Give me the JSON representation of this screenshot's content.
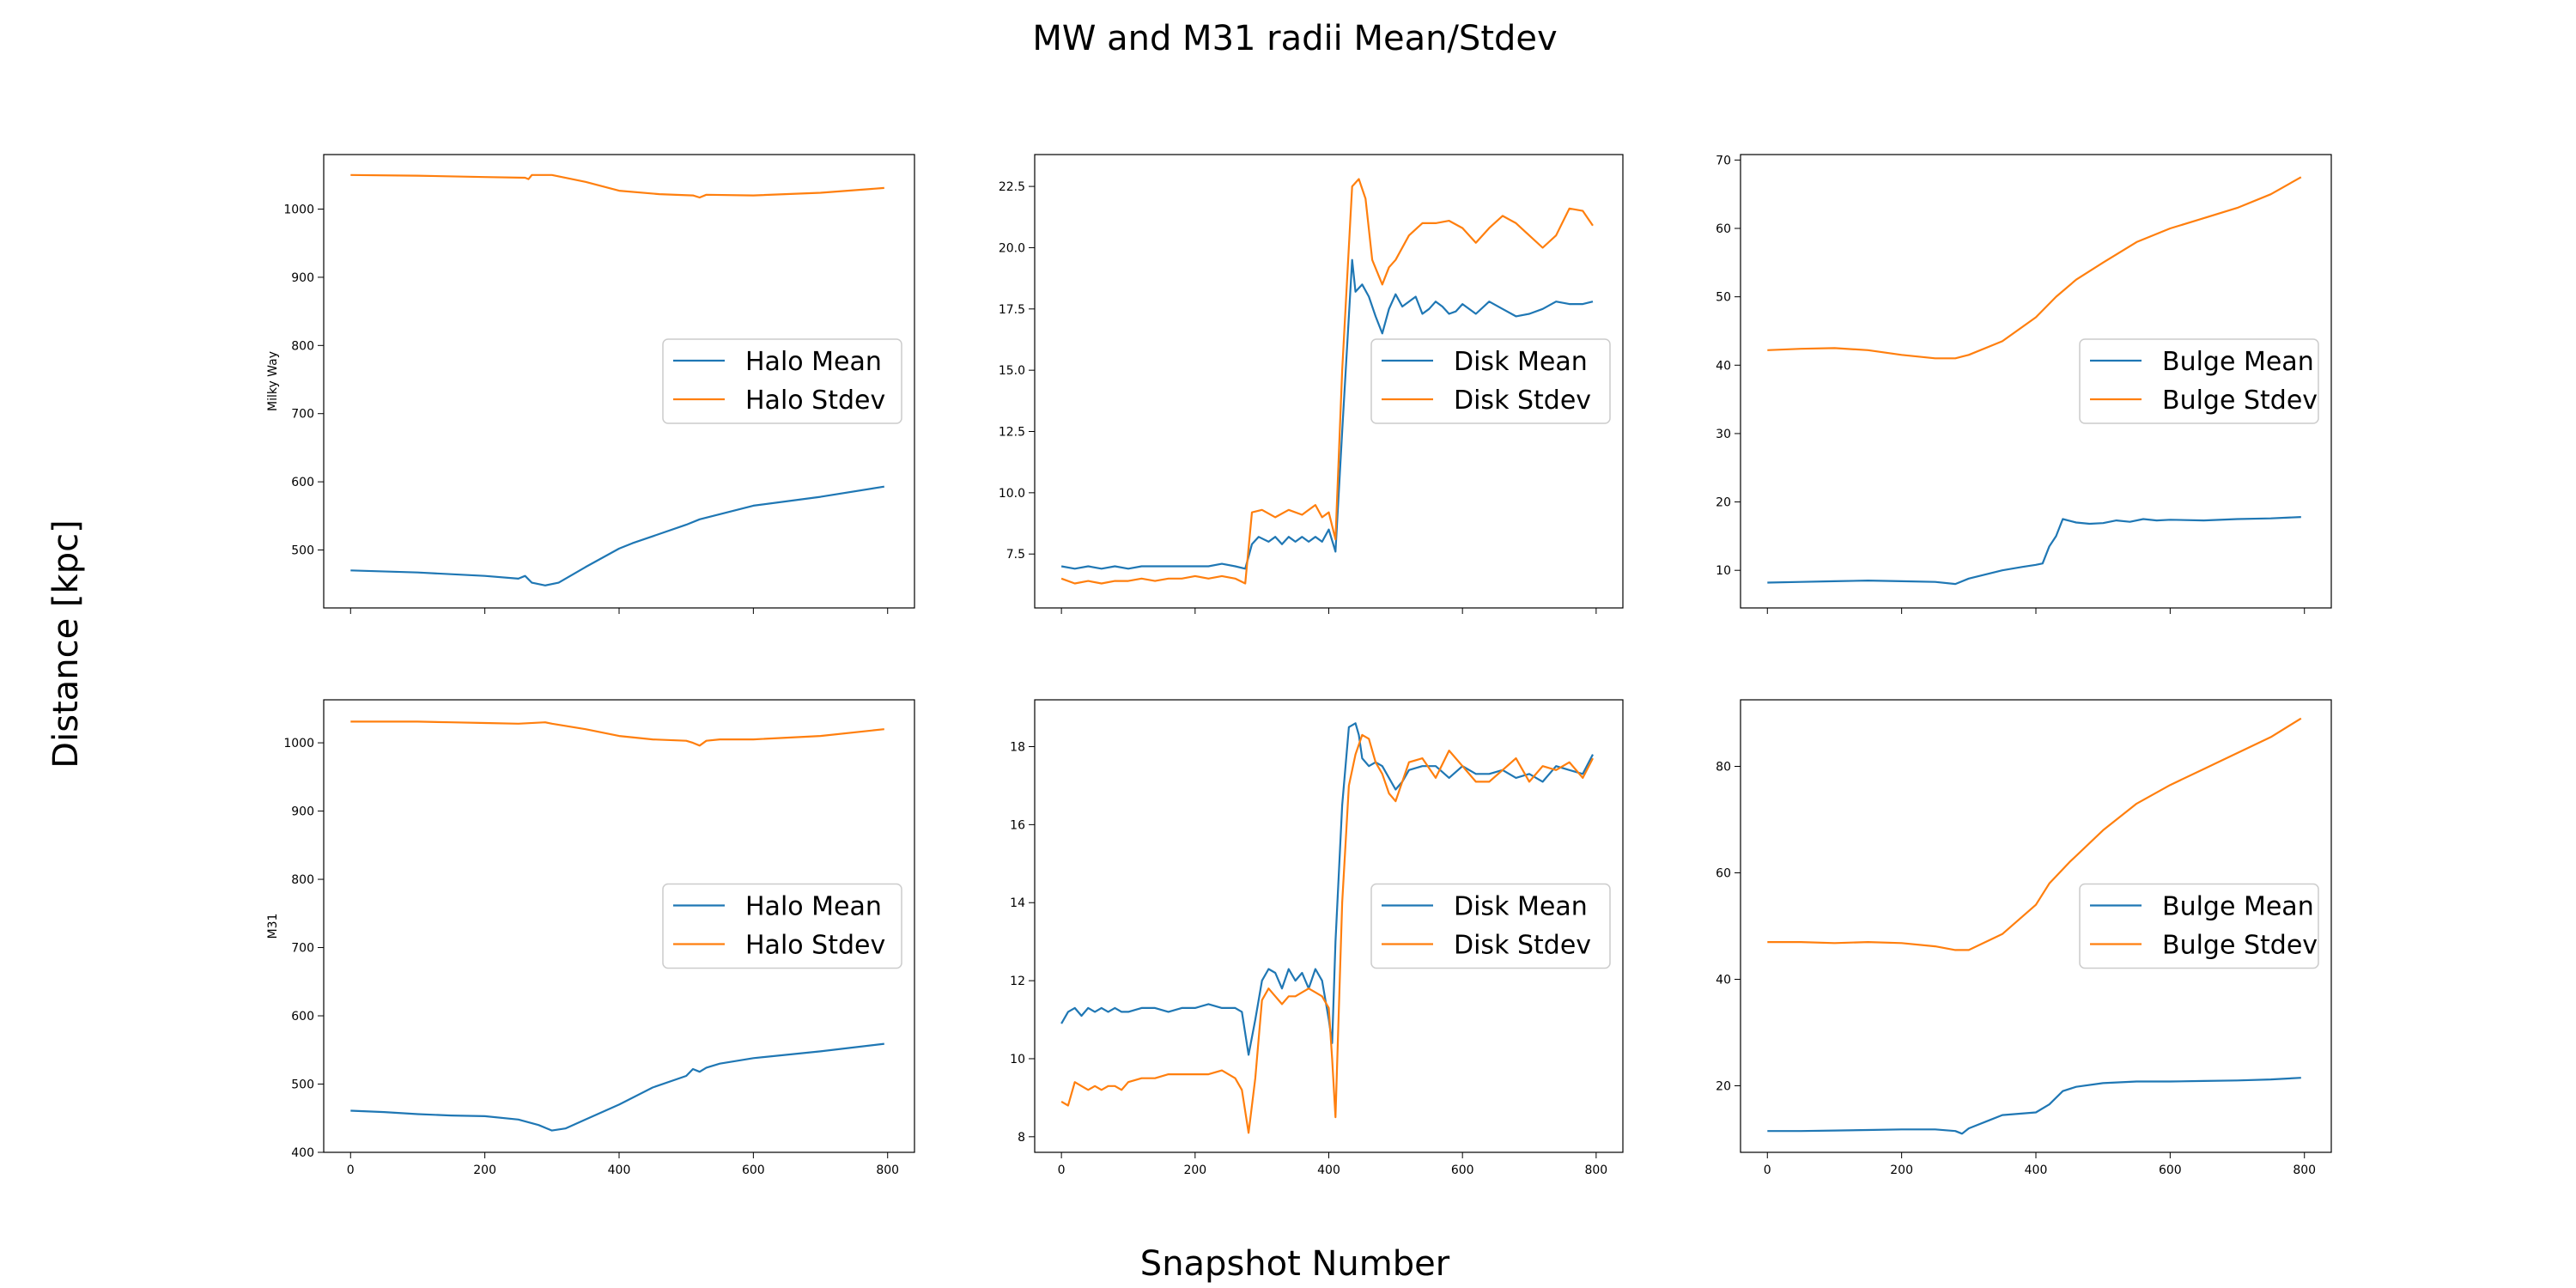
{
  "figure": {
    "title": "MW and M31 radii Mean/Stdev",
    "xlabel": "Snapshot Number",
    "ylabel": "Distance [kpc]"
  },
  "colors": {
    "mean": "#1f77b4",
    "stdev": "#ff7f0e"
  },
  "chart_data": [
    {
      "type": "line",
      "row": 0,
      "col": 0,
      "ylabel": "Milky Way",
      "xlim": [
        -40,
        840
      ],
      "ylim": [
        415,
        1080
      ],
      "xticks": [
        0,
        200,
        400,
        600,
        800
      ],
      "xticklabels_visible": false,
      "yticks": [
        500,
        600,
        700,
        800,
        900,
        1000
      ],
      "legend": "center-right",
      "series": [
        {
          "name": "Halo Mean",
          "color": "#1f77b4",
          "x": [
            0,
            100,
            200,
            250,
            260,
            270,
            290,
            310,
            350,
            400,
            420,
            500,
            520,
            600,
            700,
            795
          ],
          "y": [
            470,
            467,
            462,
            458,
            462,
            452,
            448,
            452,
            475,
            502,
            510,
            537,
            545,
            565,
            578,
            593
          ]
        },
        {
          "name": "Halo Stdev",
          "color": "#ff7f0e",
          "x": [
            0,
            100,
            200,
            260,
            265,
            270,
            300,
            350,
            400,
            460,
            510,
            520,
            530,
            600,
            700,
            795
          ],
          "y": [
            1050,
            1049,
            1047,
            1046,
            1044,
            1050,
            1050,
            1040,
            1027,
            1022,
            1020,
            1017,
            1021,
            1020,
            1024,
            1031
          ]
        }
      ]
    },
    {
      "type": "line",
      "row": 0,
      "col": 1,
      "ylabel": "",
      "xlim": [
        -40,
        840
      ],
      "ylim": [
        5.3,
        23.8
      ],
      "xticks": [
        0,
        200,
        400,
        600,
        800
      ],
      "xticklabels_visible": false,
      "yticks": [
        7.5,
        10.0,
        12.5,
        15.0,
        17.5,
        20.0,
        22.5
      ],
      "yticklabels": [
        "7.5",
        "10.0",
        "12.5",
        "15.0",
        "17.5",
        "20.0",
        "22.5"
      ],
      "legend": "center-right",
      "series": [
        {
          "name": "Disk Mean",
          "color": "#1f77b4",
          "x": [
            0,
            20,
            40,
            60,
            80,
            100,
            120,
            140,
            160,
            180,
            200,
            220,
            240,
            260,
            275,
            285,
            295,
            310,
            320,
            330,
            340,
            350,
            360,
            370,
            380,
            390,
            400,
            410,
            420,
            435,
            440,
            450,
            460,
            470,
            480,
            490,
            500,
            510,
            520,
            530,
            540,
            550,
            560,
            570,
            580,
            590,
            600,
            620,
            640,
            660,
            680,
            700,
            720,
            740,
            760,
            780,
            795
          ],
          "y": [
            7.0,
            6.9,
            7.0,
            6.9,
            7.0,
            6.9,
            7.0,
            7.0,
            7.0,
            7.0,
            7.0,
            7.0,
            7.1,
            7.0,
            6.9,
            7.9,
            8.2,
            8.0,
            8.2,
            7.9,
            8.2,
            8.0,
            8.2,
            8.0,
            8.2,
            8.0,
            8.5,
            7.6,
            12.5,
            19.5,
            18.2,
            18.5,
            18.0,
            17.2,
            16.5,
            17.5,
            18.1,
            17.6,
            17.8,
            18.0,
            17.3,
            17.5,
            17.8,
            17.6,
            17.3,
            17.4,
            17.7,
            17.3,
            17.8,
            17.5,
            17.2,
            17.3,
            17.5,
            17.8,
            17.7,
            17.7,
            17.8
          ]
        },
        {
          "name": "Disk Stdev",
          "color": "#ff7f0e",
          "x": [
            0,
            20,
            40,
            60,
            80,
            100,
            120,
            140,
            160,
            180,
            200,
            220,
            240,
            260,
            275,
            285,
            300,
            320,
            340,
            360,
            380,
            390,
            400,
            410,
            420,
            435,
            445,
            455,
            465,
            480,
            490,
            500,
            520,
            540,
            560,
            580,
            600,
            620,
            640,
            660,
            680,
            700,
            720,
            740,
            760,
            780,
            795
          ],
          "y": [
            6.5,
            6.3,
            6.4,
            6.3,
            6.4,
            6.4,
            6.5,
            6.4,
            6.5,
            6.5,
            6.6,
            6.5,
            6.6,
            6.5,
            6.3,
            9.2,
            9.3,
            9.0,
            9.3,
            9.1,
            9.5,
            9.0,
            9.2,
            8.1,
            15.0,
            22.5,
            22.8,
            22.0,
            19.5,
            18.5,
            19.2,
            19.5,
            20.5,
            21.0,
            21.0,
            21.1,
            20.8,
            20.2,
            20.8,
            21.3,
            21.0,
            20.5,
            20.0,
            20.5,
            21.6,
            21.5,
            20.9
          ]
        }
      ]
    },
    {
      "type": "line",
      "row": 0,
      "col": 2,
      "ylabel": "",
      "xlim": [
        -40,
        840
      ],
      "ylim": [
        4.5,
        70.8
      ],
      "xticks": [
        0,
        200,
        400,
        600,
        800
      ],
      "xticklabels_visible": false,
      "yticks": [
        10,
        20,
        30,
        40,
        50,
        60,
        70
      ],
      "legend": "center-right",
      "series": [
        {
          "name": "Bulge Mean",
          "color": "#1f77b4",
          "x": [
            0,
            50,
            100,
            150,
            200,
            250,
            280,
            300,
            350,
            380,
            400,
            410,
            420,
            430,
            440,
            460,
            480,
            500,
            520,
            540,
            560,
            580,
            600,
            650,
            700,
            750,
            795
          ],
          "y": [
            8.2,
            8.3,
            8.4,
            8.5,
            8.4,
            8.3,
            8.0,
            8.8,
            10.0,
            10.5,
            10.8,
            11.0,
            13.5,
            15.0,
            17.5,
            17.0,
            16.8,
            16.9,
            17.3,
            17.1,
            17.5,
            17.3,
            17.4,
            17.3,
            17.5,
            17.6,
            17.8
          ]
        },
        {
          "name": "Bulge Stdev",
          "color": "#ff7f0e",
          "x": [
            0,
            50,
            100,
            150,
            200,
            250,
            280,
            300,
            350,
            400,
            430,
            460,
            500,
            550,
            600,
            650,
            700,
            750,
            795
          ],
          "y": [
            42.2,
            42.4,
            42.5,
            42.2,
            41.5,
            41.0,
            41.0,
            41.5,
            43.5,
            47.0,
            50.0,
            52.5,
            55.0,
            58.0,
            60.0,
            61.5,
            63.0,
            65.0,
            67.5
          ]
        }
      ]
    },
    {
      "type": "line",
      "row": 1,
      "col": 0,
      "ylabel": "M31",
      "xlim": [
        -40,
        840
      ],
      "ylim": [
        400,
        1063
      ],
      "xticks": [
        0,
        200,
        400,
        600,
        800
      ],
      "xticklabels_visible": true,
      "yticks": [
        400,
        500,
        600,
        700,
        800,
        900,
        1000
      ],
      "legend": "center-right",
      "series": [
        {
          "name": "Halo Mean",
          "color": "#1f77b4",
          "x": [
            0,
            50,
            100,
            150,
            200,
            250,
            280,
            300,
            320,
            350,
            400,
            450,
            500,
            510,
            520,
            530,
            550,
            600,
            700,
            795
          ],
          "y": [
            461,
            459,
            456,
            454,
            453,
            448,
            440,
            432,
            435,
            448,
            470,
            495,
            512,
            522,
            518,
            524,
            530,
            538,
            548,
            559
          ]
        },
        {
          "name": "Halo Stdev",
          "color": "#ff7f0e",
          "x": [
            0,
            50,
            100,
            150,
            200,
            250,
            290,
            300,
            350,
            400,
            450,
            500,
            510,
            520,
            530,
            550,
            600,
            700,
            795
          ],
          "y": [
            1031,
            1031,
            1031,
            1030,
            1029,
            1028,
            1030,
            1028,
            1020,
            1010,
            1005,
            1003,
            1000,
            996,
            1003,
            1005,
            1005,
            1010,
            1020
          ]
        }
      ]
    },
    {
      "type": "line",
      "row": 1,
      "col": 1,
      "ylabel": "",
      "xlim": [
        -40,
        840
      ],
      "ylim": [
        7.6,
        19.2
      ],
      "xticks": [
        0,
        200,
        400,
        600,
        800
      ],
      "xticklabels_visible": true,
      "yticks": [
        8,
        10,
        12,
        14,
        16,
        18
      ],
      "legend": "center-right",
      "series": [
        {
          "name": "Disk Mean",
          "color": "#1f77b4",
          "x": [
            0,
            10,
            20,
            30,
            40,
            50,
            60,
            70,
            80,
            90,
            100,
            120,
            140,
            160,
            180,
            200,
            220,
            240,
            260,
            270,
            280,
            290,
            300,
            310,
            320,
            330,
            340,
            350,
            360,
            370,
            380,
            390,
            400,
            405,
            410,
            420,
            430,
            440,
            445,
            450,
            460,
            470,
            480,
            490,
            500,
            510,
            520,
            540,
            560,
            580,
            600,
            620,
            640,
            660,
            680,
            700,
            720,
            740,
            760,
            780,
            795
          ],
          "y": [
            10.9,
            11.2,
            11.3,
            11.1,
            11.3,
            11.2,
            11.3,
            11.2,
            11.3,
            11.2,
            11.2,
            11.3,
            11.3,
            11.2,
            11.3,
            11.3,
            11.4,
            11.3,
            11.3,
            11.2,
            10.1,
            11.0,
            12.0,
            12.3,
            12.2,
            11.8,
            12.3,
            12.0,
            12.2,
            11.8,
            12.3,
            12.0,
            11.0,
            10.4,
            13.0,
            16.5,
            18.5,
            18.6,
            18.3,
            17.7,
            17.5,
            17.6,
            17.5,
            17.2,
            16.9,
            17.1,
            17.4,
            17.5,
            17.5,
            17.2,
            17.5,
            17.3,
            17.3,
            17.4,
            17.2,
            17.3,
            17.1,
            17.5,
            17.4,
            17.3,
            17.8
          ]
        },
        {
          "name": "Disk Stdev",
          "color": "#ff7f0e",
          "x": [
            0,
            10,
            20,
            30,
            40,
            50,
            60,
            70,
            80,
            90,
            100,
            120,
            140,
            160,
            180,
            200,
            220,
            240,
            260,
            270,
            280,
            290,
            300,
            310,
            320,
            330,
            340,
            350,
            360,
            370,
            380,
            390,
            400,
            405,
            410,
            420,
            430,
            440,
            450,
            460,
            470,
            480,
            490,
            500,
            510,
            520,
            540,
            560,
            580,
            600,
            620,
            640,
            660,
            680,
            700,
            720,
            740,
            760,
            780,
            795
          ],
          "y": [
            8.9,
            8.8,
            9.4,
            9.3,
            9.2,
            9.3,
            9.2,
            9.3,
            9.3,
            9.2,
            9.4,
            9.5,
            9.5,
            9.6,
            9.6,
            9.6,
            9.6,
            9.7,
            9.5,
            9.2,
            8.1,
            9.5,
            11.5,
            11.8,
            11.6,
            11.4,
            11.6,
            11.6,
            11.7,
            11.8,
            11.7,
            11.6,
            11.3,
            10.0,
            8.5,
            14.0,
            17.0,
            17.8,
            18.3,
            18.2,
            17.6,
            17.3,
            16.8,
            16.6,
            17.1,
            17.6,
            17.7,
            17.2,
            17.9,
            17.5,
            17.1,
            17.1,
            17.4,
            17.7,
            17.1,
            17.5,
            17.4,
            17.6,
            17.2,
            17.7
          ]
        }
      ]
    },
    {
      "type": "line",
      "row": 1,
      "col": 2,
      "ylabel": "",
      "xlim": [
        -40,
        840
      ],
      "ylim": [
        7.5,
        92.5
      ],
      "xticks": [
        0,
        200,
        400,
        600,
        800
      ],
      "xticklabels_visible": true,
      "yticks": [
        20,
        40,
        60,
        80
      ],
      "legend": "center-right",
      "series": [
        {
          "name": "Bulge Mean",
          "color": "#1f77b4",
          "x": [
            0,
            50,
            100,
            150,
            200,
            250,
            280,
            290,
            300,
            330,
            350,
            400,
            420,
            440,
            460,
            500,
            550,
            600,
            650,
            700,
            750,
            795
          ],
          "y": [
            11.5,
            11.5,
            11.6,
            11.7,
            11.8,
            11.8,
            11.5,
            11.0,
            12.0,
            13.5,
            14.5,
            15.0,
            16.5,
            19.0,
            19.8,
            20.5,
            20.8,
            20.8,
            20.9,
            21.0,
            21.2,
            21.5
          ]
        },
        {
          "name": "Bulge Stdev",
          "color": "#ff7f0e",
          "x": [
            0,
            50,
            100,
            150,
            200,
            250,
            280,
            300,
            350,
            400,
            420,
            450,
            500,
            550,
            600,
            650,
            700,
            750,
            795
          ],
          "y": [
            47.0,
            47.0,
            46.8,
            47.0,
            46.8,
            46.2,
            45.5,
            45.5,
            48.5,
            54.0,
            58.0,
            62.0,
            68.0,
            73.0,
            76.5,
            79.5,
            82.5,
            85.5,
            89.0
          ]
        }
      ]
    }
  ]
}
